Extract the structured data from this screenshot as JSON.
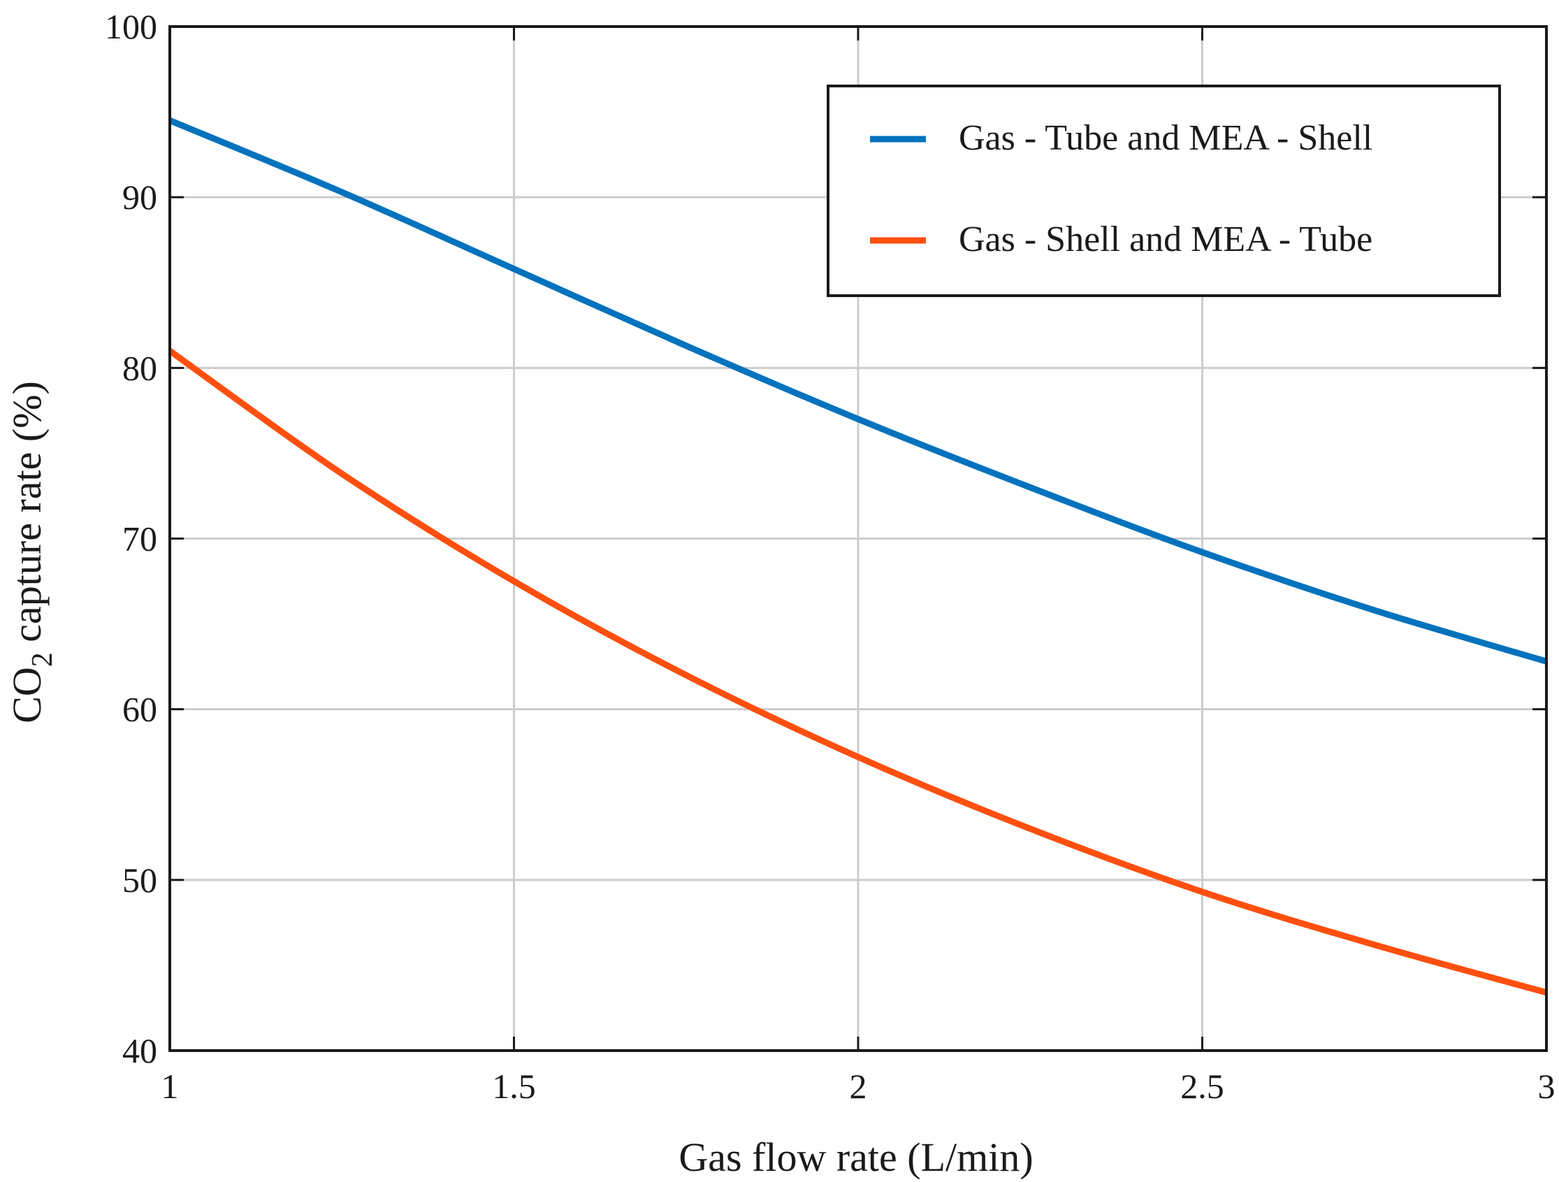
{
  "chart_data": {
    "type": "line",
    "title": "",
    "xlabel": "Gas flow rate (L/min)",
    "ylabel_main": "CO",
    "ylabel_sub": "2",
    "ylabel_rest": " capture rate (%)",
    "xlim": [
      1,
      3
    ],
    "ylim": [
      40,
      100
    ],
    "xticks": [
      1,
      1.5,
      2,
      2.5,
      3
    ],
    "xtick_labels": [
      "1",
      "1.5",
      "2",
      "2.5",
      "3"
    ],
    "yticks": [
      40,
      50,
      60,
      70,
      80,
      90,
      100
    ],
    "ytick_labels": [
      "40",
      "50",
      "60",
      "70",
      "80",
      "90",
      "100"
    ],
    "grid": true,
    "legend_position": "top-right",
    "series": [
      {
        "name": "Gas - Tube and MEA - Shell",
        "color": "#0072BD",
        "x": [
          1.0,
          1.25,
          1.5,
          1.75,
          2.0,
          2.25,
          2.5,
          2.75,
          3.0
        ],
        "y": [
          94.5,
          90.3,
          85.8,
          81.3,
          77.0,
          73.0,
          69.2,
          65.8,
          62.8
        ]
      },
      {
        "name": "Gas - Shell and MEA - Tube",
        "color": "#FF4F0F",
        "x": [
          1.0,
          1.25,
          1.5,
          1.75,
          2.0,
          2.25,
          2.5,
          2.75,
          3.0
        ],
        "y": [
          81.0,
          73.8,
          67.5,
          62.0,
          57.2,
          53.0,
          49.3,
          46.2,
          43.4
        ]
      }
    ]
  }
}
